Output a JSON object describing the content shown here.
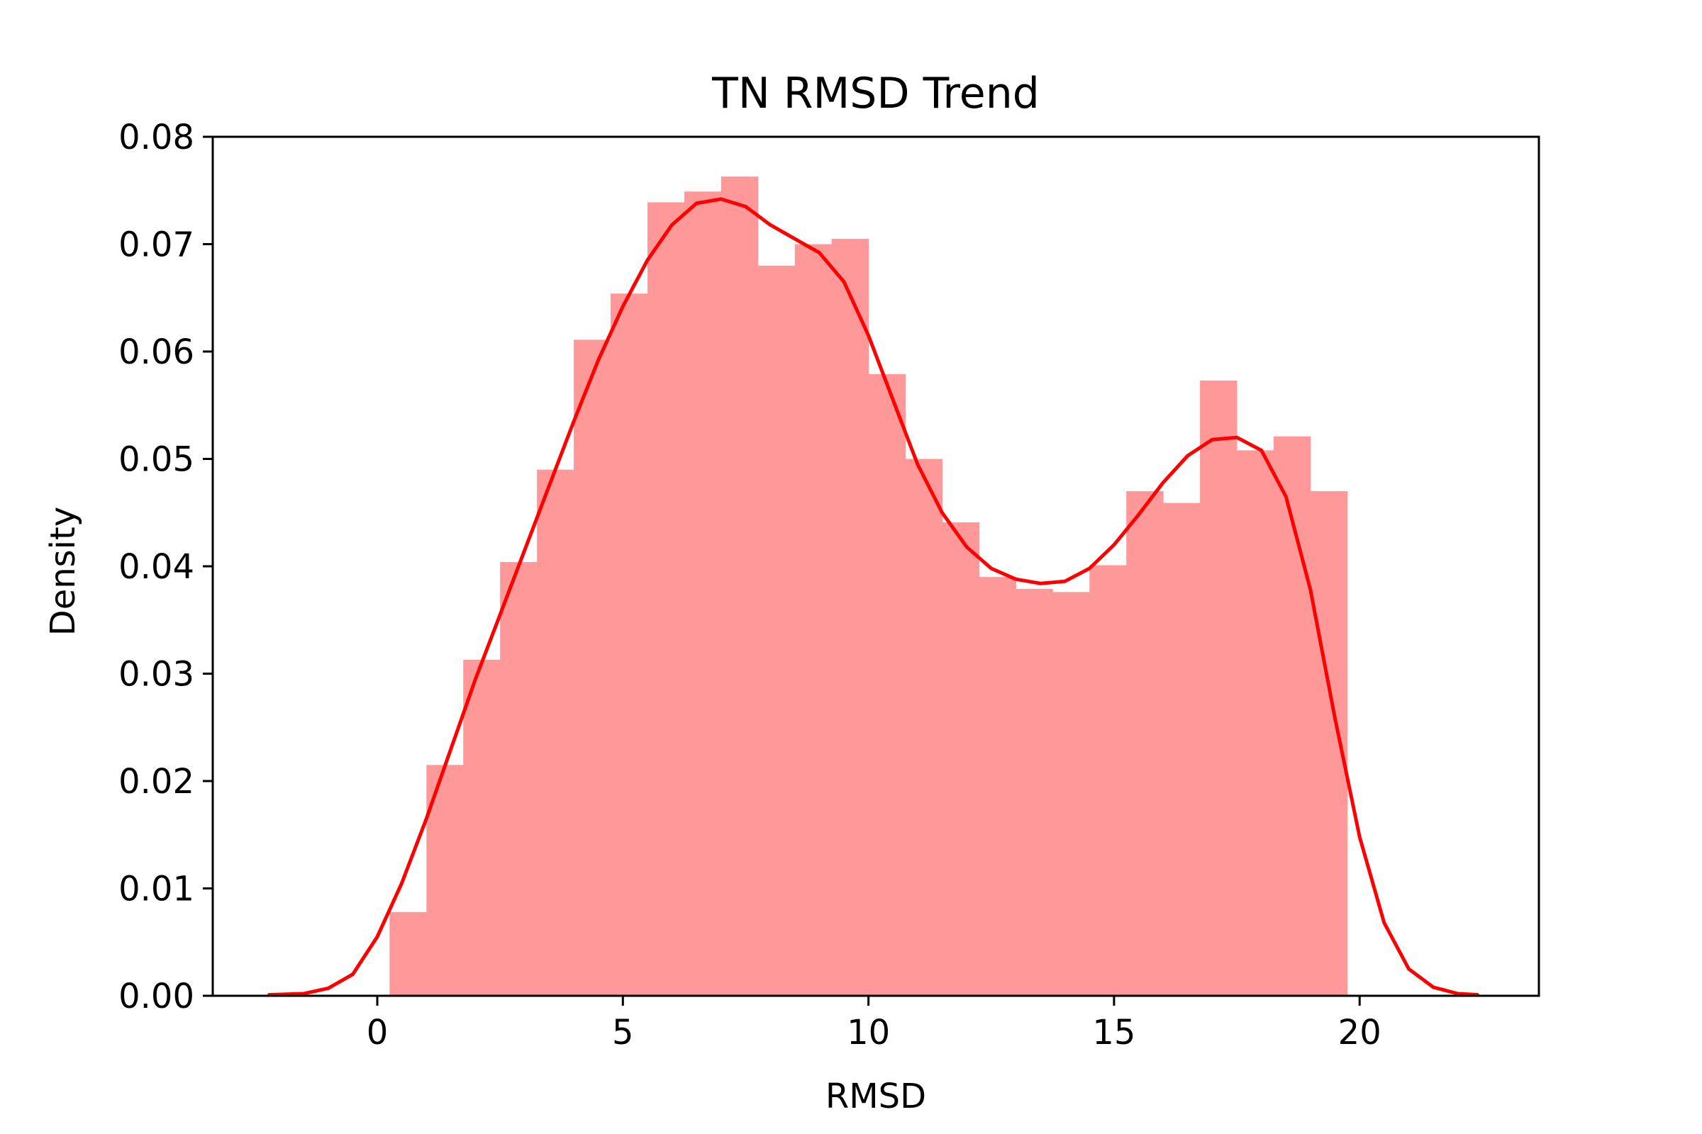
{
  "chart_data": {
    "type": "histogram",
    "title": "TN RMSD Trend",
    "xlabel": "RMSD",
    "ylabel": "Density",
    "xlim": [
      -3.35,
      23.65
    ],
    "ylim": [
      0,
      0.08
    ],
    "xticks": [
      "0",
      "5",
      "10",
      "15",
      "20"
    ],
    "xtick_values": [
      0,
      5,
      10,
      15,
      20
    ],
    "yticks": [
      "0.00",
      "0.01",
      "0.02",
      "0.03",
      "0.04",
      "0.05",
      "0.06",
      "0.07",
      "0.08"
    ],
    "ytick_values": [
      0,
      0.01,
      0.02,
      0.03,
      0.04,
      0.05,
      0.06,
      0.07,
      0.08
    ],
    "grid": false,
    "bar_color": "#ff9999",
    "line_color": "#ff0000",
    "bins": [
      {
        "x0": 0.25,
        "x1": 1.0,
        "density": 0.0078
      },
      {
        "x0": 1.0,
        "x1": 1.75,
        "density": 0.0215
      },
      {
        "x0": 1.75,
        "x1": 2.5,
        "density": 0.0313
      },
      {
        "x0": 2.5,
        "x1": 3.25,
        "density": 0.0404
      },
      {
        "x0": 3.25,
        "x1": 4.0,
        "density": 0.049
      },
      {
        "x0": 4.0,
        "x1": 4.75,
        "density": 0.0611
      },
      {
        "x0": 4.75,
        "x1": 5.5,
        "density": 0.0654
      },
      {
        "x0": 5.5,
        "x1": 6.25,
        "density": 0.0739
      },
      {
        "x0": 6.25,
        "x1": 7.0,
        "density": 0.0749
      },
      {
        "x0": 7.0,
        "x1": 7.75,
        "density": 0.0763
      },
      {
        "x0": 7.75,
        "x1": 8.5,
        "density": 0.068
      },
      {
        "x0": 8.5,
        "x1": 9.25,
        "density": 0.07
      },
      {
        "x0": 9.25,
        "x1": 10.0,
        "density": 0.0705
      },
      {
        "x0": 10.0,
        "x1": 10.75,
        "density": 0.0579
      },
      {
        "x0": 10.75,
        "x1": 11.5,
        "density": 0.05
      },
      {
        "x0": 11.5,
        "x1": 12.25,
        "density": 0.0441
      },
      {
        "x0": 12.25,
        "x1": 13.0,
        "density": 0.039
      },
      {
        "x0": 13.0,
        "x1": 13.75,
        "density": 0.0379
      },
      {
        "x0": 13.75,
        "x1": 14.5,
        "density": 0.0376
      },
      {
        "x0": 14.5,
        "x1": 15.25,
        "density": 0.0401
      },
      {
        "x0": 15.25,
        "x1": 16.0,
        "density": 0.047
      },
      {
        "x0": 16.0,
        "x1": 16.75,
        "density": 0.0459
      },
      {
        "x0": 16.75,
        "x1": 17.5,
        "density": 0.0573
      },
      {
        "x0": 17.5,
        "x1": 18.25,
        "density": 0.0508
      },
      {
        "x0": 18.25,
        "x1": 19.0,
        "density": 0.0521
      },
      {
        "x0": 19.0,
        "x1": 19.75,
        "density": 0.047
      }
    ],
    "kde": {
      "x": [
        -2.2,
        -1.5,
        -1.0,
        -0.5,
        0.0,
        0.5,
        1.0,
        1.5,
        2.0,
        2.5,
        3.0,
        3.5,
        4.0,
        4.5,
        5.0,
        5.5,
        6.0,
        6.5,
        7.0,
        7.5,
        8.0,
        8.5,
        9.0,
        9.5,
        10.0,
        10.5,
        11.0,
        11.5,
        12.0,
        12.5,
        13.0,
        13.5,
        14.0,
        14.5,
        15.0,
        15.5,
        16.0,
        16.5,
        17.0,
        17.5,
        18.0,
        18.5,
        19.0,
        19.5,
        20.0,
        20.5,
        21.0,
        21.5,
        22.0,
        22.4
      ],
      "y": [
        0.0001,
        0.0002,
        0.0007,
        0.002,
        0.0055,
        0.0105,
        0.0165,
        0.023,
        0.0295,
        0.0355,
        0.0415,
        0.0475,
        0.0535,
        0.0592,
        0.0642,
        0.0685,
        0.0718,
        0.0738,
        0.0742,
        0.0735,
        0.0718,
        0.0705,
        0.0692,
        0.0665,
        0.0615,
        0.0555,
        0.0495,
        0.045,
        0.0418,
        0.0398,
        0.0388,
        0.0384,
        0.0386,
        0.0398,
        0.042,
        0.0448,
        0.0478,
        0.0503,
        0.0518,
        0.052,
        0.0508,
        0.0465,
        0.0378,
        0.0258,
        0.0148,
        0.0068,
        0.0025,
        0.0008,
        0.0002,
        0.0001
      ]
    }
  }
}
